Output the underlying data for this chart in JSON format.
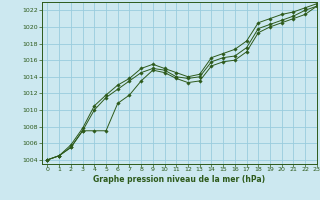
{
  "title": "Graphe pression niveau de la mer (hPa)",
  "background_color": "#cce8f0",
  "grid_color": "#99ccdd",
  "line_color": "#2d5a1b",
  "marker_color": "#2d5a1b",
  "xlim": [
    -0.5,
    23
  ],
  "ylim": [
    1003.5,
    1023
  ],
  "xticks": [
    0,
    1,
    2,
    3,
    4,
    5,
    6,
    7,
    8,
    9,
    10,
    11,
    12,
    13,
    14,
    15,
    16,
    17,
    18,
    19,
    20,
    21,
    22,
    23
  ],
  "yticks": [
    1004,
    1006,
    1008,
    1010,
    1012,
    1014,
    1016,
    1018,
    1020,
    1022
  ],
  "series": [
    [
      1004.0,
      1004.5,
      1005.5,
      1007.5,
      1010.0,
      1011.5,
      1012.5,
      1013.5,
      1014.5,
      1015.0,
      1014.8,
      1014.0,
      1013.8,
      1014.0,
      1015.8,
      1016.3,
      1016.5,
      1017.5,
      1019.8,
      1020.3,
      1020.8,
      1021.3,
      1022.0,
      1022.5
    ],
    [
      1004.0,
      1004.5,
      1005.5,
      1007.5,
      1007.5,
      1007.5,
      1010.8,
      1011.8,
      1013.5,
      1014.8,
      1014.5,
      1013.8,
      1013.3,
      1013.5,
      1015.3,
      1015.8,
      1016.0,
      1017.0,
      1019.3,
      1020.0,
      1020.5,
      1021.0,
      1021.5,
      1022.5
    ],
    [
      1004.0,
      1004.5,
      1005.8,
      1007.8,
      1010.5,
      1011.8,
      1013.0,
      1013.8,
      1015.0,
      1015.5,
      1015.0,
      1014.5,
      1014.0,
      1014.3,
      1016.3,
      1016.8,
      1017.3,
      1018.3,
      1020.5,
      1021.0,
      1021.5,
      1021.8,
      1022.3,
      1022.8
    ]
  ]
}
